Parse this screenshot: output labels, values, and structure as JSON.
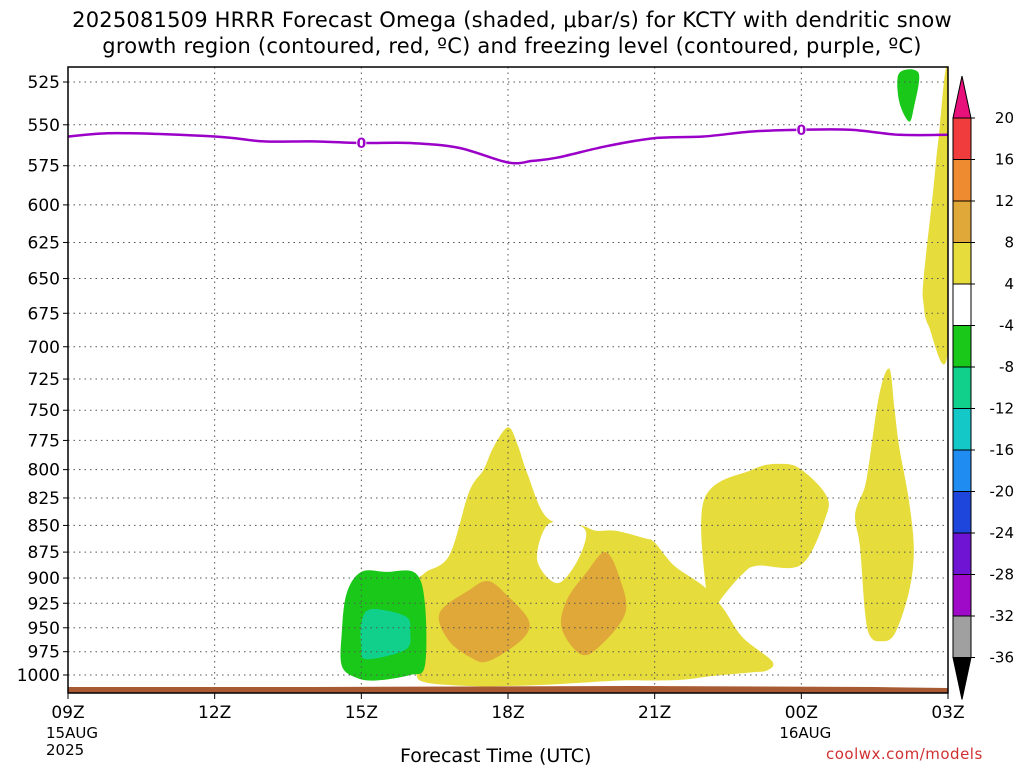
{
  "title": {
    "line1": "2025081509 HRRR Forecast Omega (shaded, μbar/s) for KCTY with dendritic snow",
    "line2": "growth region (contoured, red, ºC) and freezing level (contoured, purple, ºC)"
  },
  "xlabel": "Forecast Time (UTC)",
  "credit": "coolwx.com/models",
  "chart_data": {
    "type": "time-height contour",
    "x_axis": {
      "unit": "hours after 2025-08-15 09Z",
      "range": [
        0,
        18
      ],
      "ticks": [
        {
          "hour": 0,
          "label": "09Z",
          "sub": [
            "15AUG",
            "2025"
          ]
        },
        {
          "hour": 3,
          "label": "12Z",
          "sub": []
        },
        {
          "hour": 6,
          "label": "15Z",
          "sub": []
        },
        {
          "hour": 9,
          "label": "18Z",
          "sub": []
        },
        {
          "hour": 12,
          "label": "21Z",
          "sub": []
        },
        {
          "hour": 15,
          "label": "00Z",
          "sub": [
            "16AUG"
          ]
        },
        {
          "hour": 18,
          "label": "03Z",
          "sub": []
        }
      ]
    },
    "y_axis": {
      "unit": "hPa",
      "range": [
        1012,
        515
      ],
      "scale": "log",
      "inverted": true,
      "ticks": [
        525,
        550,
        575,
        600,
        625,
        650,
        675,
        700,
        725,
        750,
        775,
        800,
        825,
        850,
        875,
        900,
        925,
        950,
        975,
        1000
      ]
    },
    "grid": true,
    "colorbar": {
      "labels": [
        "20",
        "16",
        "12",
        "8",
        "4",
        "-4",
        "-8",
        "-12",
        "-16",
        "-20",
        "-24",
        "-28",
        "-32",
        "-36"
      ],
      "colors": [
        "#e8107a",
        "#f03c3c",
        "#ee8a30",
        "#e0a838",
        "#e6dc3c",
        "#ffffff",
        "#19c819",
        "#10d08c",
        "#14c8c8",
        "#1e8cf0",
        "#1e46dc",
        "#6e14d2",
        "#9e0ac8",
        "#a0a0a0",
        "#000000"
      ]
    },
    "freezing_level": {
      "label": "0",
      "label_hours": [
        6,
        15
      ],
      "color": "#9b00c8",
      "points": [
        [
          0,
          557
        ],
        [
          1,
          555
        ],
        [
          3,
          557
        ],
        [
          4,
          560
        ],
        [
          5,
          560
        ],
        [
          6,
          561
        ],
        [
          7,
          561
        ],
        [
          8,
          564
        ],
        [
          9,
          573
        ],
        [
          9.5,
          572
        ],
        [
          10,
          570
        ],
        [
          11,
          563
        ],
        [
          12,
          558
        ],
        [
          13,
          557
        ],
        [
          14,
          554
        ],
        [
          15,
          553
        ],
        [
          16,
          553
        ],
        [
          17,
          556
        ],
        [
          18,
          556
        ]
      ]
    },
    "omega_regions": [
      {
        "value": 4,
        "color": "#e6dc3c",
        "points": [
          [
            7.3,
            1008
          ],
          [
            8.2,
            1012
          ],
          [
            9.0,
            1012
          ],
          [
            10.0,
            1010
          ],
          [
            11.3,
            1006
          ],
          [
            11.9,
            1006
          ],
          [
            12.6,
            1005
          ],
          [
            13.2,
            1001
          ],
          [
            14.0,
            997
          ],
          [
            14.3,
            995
          ],
          [
            14.4,
            985
          ],
          [
            13.8,
            960
          ],
          [
            13.4,
            930
          ],
          [
            13.0,
            908
          ],
          [
            12.4,
            888
          ],
          [
            12.0,
            866
          ],
          [
            11.8,
            862
          ],
          [
            11.2,
            855
          ],
          [
            10.8,
            855
          ],
          [
            10.5,
            850
          ],
          [
            9.8,
            843
          ],
          [
            9.4,
            804
          ],
          [
            9.2,
            779
          ],
          [
            9.0,
            764
          ],
          [
            8.7,
            781
          ],
          [
            8.5,
            800
          ],
          [
            8.2,
            820
          ],
          [
            7.8,
            878
          ],
          [
            7.3,
            895
          ],
          [
            7.0,
            911
          ],
          [
            6.9,
            960
          ],
          [
            7.1,
            996
          ]
        ]
      },
      {
        "value": 4,
        "color": "#e6dc3c",
        "points": [
          [
            13.1,
            940
          ],
          [
            13.4,
            918
          ],
          [
            13.8,
            896
          ],
          [
            14.1,
            888
          ],
          [
            15.0,
            887
          ],
          [
            15.5,
            842
          ],
          [
            15.5,
            822
          ],
          [
            15.0,
            800
          ],
          [
            14.6,
            795
          ],
          [
            14.0,
            800
          ],
          [
            13.0,
            828
          ],
          [
            13.1,
            935
          ]
        ]
      },
      {
        "value": 4,
        "color": "#e6dc3c",
        "points": [
          [
            16.4,
            958
          ],
          [
            16.6,
            964
          ],
          [
            16.9,
            957
          ],
          [
            17.2,
            914
          ],
          [
            17.3,
            873
          ],
          [
            17.2,
            827
          ],
          [
            17.0,
            780
          ],
          [
            16.9,
            747
          ],
          [
            16.8,
            717
          ],
          [
            16.6,
            736
          ],
          [
            16.4,
            790
          ],
          [
            16.3,
            815
          ],
          [
            16.1,
            840
          ],
          [
            16.2,
            870
          ],
          [
            16.3,
            933
          ]
        ]
      },
      {
        "value": 4,
        "color": "#e6dc3c",
        "points": [
          [
            17.6,
            684
          ],
          [
            18,
            702
          ],
          [
            18,
            520
          ],
          [
            17.8,
            560
          ],
          [
            17.7,
            590
          ],
          [
            17.5,
            650
          ],
          [
            17.5,
            668
          ]
        ]
      },
      {
        "value": 8,
        "color": "#e0a838",
        "points": [
          [
            7.8,
            964
          ],
          [
            8.3,
            983
          ],
          [
            8.6,
            985
          ],
          [
            9.1,
            970
          ],
          [
            9.4,
            955
          ],
          [
            9.4,
            940
          ],
          [
            9.0,
            918
          ],
          [
            8.6,
            903
          ],
          [
            8.2,
            912
          ],
          [
            7.6,
            935
          ]
        ]
      },
      {
        "value": 8,
        "color": "#e0a838",
        "points": [
          [
            10.1,
            951
          ],
          [
            10.5,
            978
          ],
          [
            10.9,
            968
          ],
          [
            11.4,
            935
          ],
          [
            11.3,
            902
          ],
          [
            11.0,
            875
          ],
          [
            10.6,
            895
          ],
          [
            10.2,
            922
          ]
        ]
      },
      {
        "value": -4,
        "color": "#ffffff",
        "points": [
          [
            9.6,
            883
          ],
          [
            10.0,
            905
          ],
          [
            10.4,
            885
          ],
          [
            10.6,
            857
          ],
          [
            10.3,
            848
          ],
          [
            9.8,
            850
          ]
        ]
      },
      {
        "value": -8,
        "color": "#19c819",
        "points": [
          [
            5.9,
            1003
          ],
          [
            6.3,
            1006
          ],
          [
            7.0,
            1000
          ],
          [
            7.3,
            990
          ],
          [
            7.3,
            925
          ],
          [
            7.1,
            895
          ],
          [
            6.5,
            894
          ],
          [
            6.0,
            894
          ],
          [
            5.7,
            915
          ],
          [
            5.6,
            955
          ],
          [
            5.6,
            990
          ]
        ]
      },
      {
        "value": -8,
        "color": "#19c819",
        "points": [
          [
            17.0,
            520
          ],
          [
            17.4,
            520
          ],
          [
            17.3,
            540
          ],
          [
            17.2,
            548
          ],
          [
            17.0,
            536
          ]
        ]
      },
      {
        "value": -12,
        "color": "#10d08c",
        "points": [
          [
            6.1,
            983
          ],
          [
            6.9,
            973
          ],
          [
            7.0,
            954
          ],
          [
            6.9,
            938
          ],
          [
            6.2,
            931
          ],
          [
            6.0,
            945
          ],
          [
            6.0,
            970
          ]
        ]
      }
    ]
  }
}
